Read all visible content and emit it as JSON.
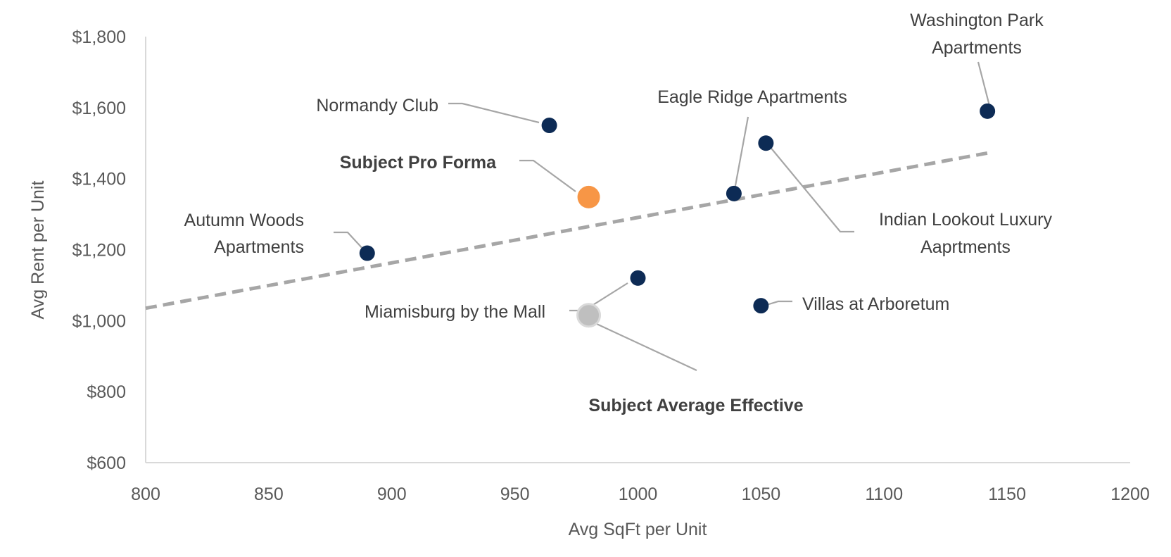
{
  "chart_data": {
    "type": "scatter",
    "xlabel": "Avg SqFt per Unit",
    "ylabel": "Avg Rent per Unit",
    "xlim": [
      800,
      1200
    ],
    "ylim": [
      600,
      1800
    ],
    "x_ticks": [
      "800",
      "850",
      "900",
      "950",
      "1000",
      "1050",
      "1100",
      "1150",
      "1200"
    ],
    "y_ticks": [
      "$600",
      "$800",
      "$1,000",
      "$1,200",
      "$1,400",
      "$1,600",
      "$1,800"
    ],
    "grid": false,
    "legend": "none",
    "trendline": {
      "style": "dashed",
      "color": "#a6a6a6",
      "from": [
        800,
        1035
      ],
      "to": [
        1142,
        1472
      ]
    },
    "points": [
      {
        "label": [
          "Washington Park",
          "Apartments"
        ],
        "x": 1142,
        "y": 1590,
        "color": "#0d2b55",
        "bold": false
      },
      {
        "label": [
          "Normandy Club"
        ],
        "x": 964,
        "y": 1550,
        "color": "#0d2b55",
        "bold": false
      },
      {
        "label": [
          "Eagle Ridge Apartments"
        ],
        "x": 1039,
        "y": 1358,
        "color": "#0d2b55",
        "bold": false
      },
      {
        "label": [
          "Indian Lookout Luxury",
          "Aaprtments"
        ],
        "x": 1052,
        "y": 1500,
        "color": "#0d2b55",
        "bold": false
      },
      {
        "label": [
          "Subject Pro Forma"
        ],
        "x": 980,
        "y": 1348,
        "color": "#f79646",
        "bold": true
      },
      {
        "label": [
          "Autumn Woods",
          "Apartments"
        ],
        "x": 890,
        "y": 1190,
        "color": "#0d2b55",
        "bold": false
      },
      {
        "label": [
          "Miamisburg by the Mall"
        ],
        "x": 1000,
        "y": 1120,
        "color": "#0d2b55",
        "bold": false
      },
      {
        "label": [
          "Villas at Arboretum"
        ],
        "x": 1050,
        "y": 1042,
        "color": "#0d2b55",
        "bold": false
      },
      {
        "label": [
          "Subject Average Effective"
        ],
        "x": 980,
        "y": 1015,
        "color": "#bfbfbf",
        "bold": true
      }
    ]
  }
}
